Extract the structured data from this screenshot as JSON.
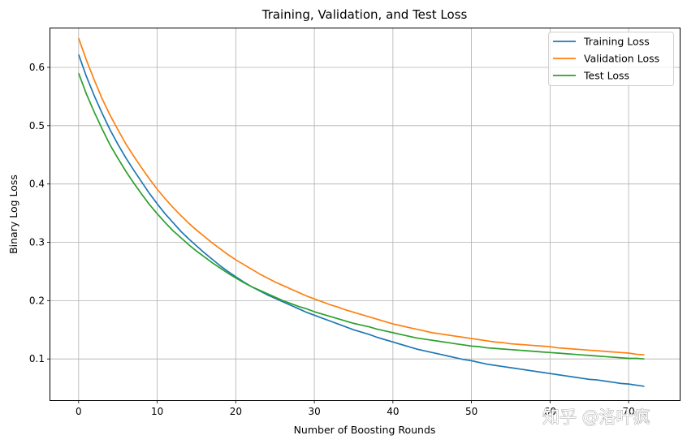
{
  "chart_data": {
    "type": "line",
    "title": "Training, Validation, and Test Loss",
    "xlabel": "Number of Boosting Rounds",
    "ylabel": "Binary Log Loss",
    "xlim": [
      -3.6,
      76.5
    ],
    "ylim": [
      0.0293,
      0.6668
    ],
    "xticks": [
      0,
      10,
      20,
      30,
      40,
      50,
      60,
      70
    ],
    "xtick_labels": [
      "0",
      "10",
      "20",
      "30",
      "40",
      "50",
      "60",
      "70"
    ],
    "yticks": [
      0.1,
      0.2,
      0.3,
      0.4,
      0.5,
      0.6
    ],
    "ytick_labels": [
      "0.1",
      "0.2",
      "0.3",
      "0.4",
      "0.5",
      "0.6"
    ],
    "grid": true,
    "legend_position": "top-right",
    "x": [
      0,
      1,
      2,
      3,
      4,
      5,
      6,
      7,
      8,
      9,
      10,
      11,
      12,
      13,
      14,
      15,
      16,
      17,
      18,
      19,
      20,
      21,
      22,
      23,
      24,
      25,
      26,
      27,
      28,
      29,
      30,
      31,
      32,
      33,
      34,
      35,
      36,
      37,
      38,
      39,
      40,
      41,
      42,
      43,
      44,
      45,
      46,
      47,
      48,
      49,
      50,
      51,
      52,
      53,
      54,
      55,
      56,
      57,
      58,
      59,
      60,
      61,
      62,
      63,
      64,
      65,
      66,
      67,
      68,
      69,
      70,
      71,
      72
    ],
    "series": [
      {
        "name": "Training Loss",
        "color": "#1f77b4",
        "values": [
          0.622,
          0.584,
          0.551,
          0.521,
          0.493,
          0.468,
          0.445,
          0.424,
          0.404,
          0.384,
          0.366,
          0.349,
          0.334,
          0.319,
          0.306,
          0.294,
          0.282,
          0.271,
          0.26,
          0.25,
          0.241,
          0.232,
          0.224,
          0.217,
          0.21,
          0.204,
          0.198,
          0.192,
          0.186,
          0.18,
          0.175,
          0.17,
          0.165,
          0.16,
          0.155,
          0.15,
          0.146,
          0.142,
          0.137,
          0.133,
          0.129,
          0.125,
          0.121,
          0.117,
          0.114,
          0.111,
          0.108,
          0.105,
          0.102,
          0.099,
          0.097,
          0.094,
          0.091,
          0.089,
          0.087,
          0.085,
          0.083,
          0.081,
          0.079,
          0.077,
          0.075,
          0.073,
          0.071,
          0.069,
          0.067,
          0.065,
          0.064,
          0.062,
          0.06,
          0.058,
          0.057,
          0.055,
          0.053
        ]
      },
      {
        "name": "Validation Loss",
        "color": "#ff7f0e",
        "values": [
          0.65,
          0.612,
          0.578,
          0.546,
          0.518,
          0.493,
          0.469,
          0.448,
          0.428,
          0.409,
          0.391,
          0.375,
          0.36,
          0.346,
          0.333,
          0.321,
          0.31,
          0.299,
          0.289,
          0.279,
          0.27,
          0.262,
          0.254,
          0.246,
          0.239,
          0.232,
          0.226,
          0.22,
          0.214,
          0.208,
          0.203,
          0.198,
          0.193,
          0.189,
          0.184,
          0.18,
          0.176,
          0.172,
          0.168,
          0.164,
          0.16,
          0.157,
          0.154,
          0.151,
          0.148,
          0.145,
          0.143,
          0.141,
          0.139,
          0.137,
          0.135,
          0.133,
          0.131,
          0.129,
          0.128,
          0.126,
          0.125,
          0.124,
          0.123,
          0.122,
          0.121,
          0.119,
          0.118,
          0.117,
          0.116,
          0.115,
          0.114,
          0.113,
          0.112,
          0.111,
          0.11,
          0.108,
          0.107
        ]
      },
      {
        "name": "Test Loss",
        "color": "#2ca02c",
        "values": [
          0.59,
          0.554,
          0.523,
          0.494,
          0.467,
          0.444,
          0.422,
          0.402,
          0.383,
          0.365,
          0.349,
          0.334,
          0.32,
          0.308,
          0.296,
          0.285,
          0.275,
          0.265,
          0.256,
          0.247,
          0.239,
          0.231,
          0.224,
          0.218,
          0.212,
          0.206,
          0.2,
          0.195,
          0.19,
          0.186,
          0.181,
          0.177,
          0.173,
          0.169,
          0.165,
          0.161,
          0.158,
          0.155,
          0.151,
          0.148,
          0.145,
          0.142,
          0.139,
          0.136,
          0.134,
          0.132,
          0.13,
          0.128,
          0.126,
          0.124,
          0.122,
          0.121,
          0.119,
          0.118,
          0.117,
          0.116,
          0.115,
          0.114,
          0.113,
          0.112,
          0.111,
          0.11,
          0.109,
          0.108,
          0.107,
          0.106,
          0.105,
          0.104,
          0.103,
          0.102,
          0.101,
          0.101,
          0.1
        ]
      }
    ]
  },
  "watermark": "知乎 @洛叶疯"
}
